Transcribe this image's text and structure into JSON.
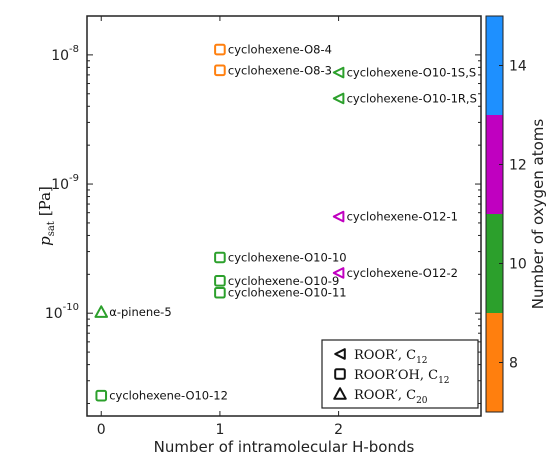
{
  "chart_data": {
    "type": "scatter",
    "xlabel": "Number of intramolecular H-bonds",
    "ylabel_main": "p",
    "ylabel_sub": "sat",
    "ylabel_unit": "[Pa]",
    "yscale": "log",
    "xlim": [
      -0.12,
      3.2
    ],
    "ylim": [
      1.6e-11,
      2e-08
    ],
    "xticks": [
      "0",
      "1",
      "2"
    ],
    "yticks": [
      {
        "base": "10",
        "exp": "-8",
        "value": 1e-08
      },
      {
        "base": "10",
        "exp": "-9",
        "value": 1e-09
      },
      {
        "base": "10",
        "exp": "-10",
        "value": 1e-10
      }
    ],
    "points": [
      {
        "label": "cyclohexene-O8-4",
        "x": 1,
        "y": 1.1e-08,
        "marker": "square",
        "oxygen": 8
      },
      {
        "label": "cyclohexene-O8-3",
        "x": 1,
        "y": 7.6e-09,
        "marker": "square",
        "oxygen": 8
      },
      {
        "label": "cyclohexene-O10-1S,S",
        "x": 2,
        "y": 7.3e-09,
        "marker": "triangle-left",
        "oxygen": 10
      },
      {
        "label": "cyclohexene-O10-1R,S",
        "x": 2,
        "y": 4.6e-09,
        "marker": "triangle-left",
        "oxygen": 10
      },
      {
        "label": "cyclohexene-O12-1",
        "x": 2,
        "y": 5.6e-10,
        "marker": "triangle-left",
        "oxygen": 12
      },
      {
        "label": "cyclohexene-O10-10",
        "x": 1,
        "y": 2.7e-10,
        "marker": "square",
        "oxygen": 10
      },
      {
        "label": "cyclohexene-O12-2",
        "x": 2,
        "y": 2.05e-10,
        "marker": "triangle-left",
        "oxygen": 12
      },
      {
        "label": "cyclohexene-O10-9",
        "x": 1,
        "y": 1.78e-10,
        "marker": "square",
        "oxygen": 10
      },
      {
        "label": "cyclohexene-O10-11",
        "x": 1,
        "y": 1.44e-10,
        "marker": "square",
        "oxygen": 10
      },
      {
        "label": "α-pinene-5",
        "x": 0,
        "y": 1.02e-10,
        "marker": "triangle-up",
        "oxygen": 10
      },
      {
        "label": "cyclohexene-O10-12",
        "x": 0,
        "y": 2.3e-11,
        "marker": "square",
        "oxygen": 10
      }
    ],
    "legend": [
      {
        "marker": "triangle-left",
        "text": "ROOR′, C",
        "sub": "12"
      },
      {
        "marker": "square",
        "text": "ROOR′OH, C",
        "sub": "12"
      },
      {
        "marker": "triangle-up",
        "text": "ROOR′, C",
        "sub": "20"
      }
    ],
    "legend_position": "bottom-right",
    "colorbar": {
      "label": "Number of oxygen atoms",
      "ticks": [
        "8",
        "10",
        "12",
        "14"
      ],
      "segments": [
        {
          "oxygen": 8,
          "color": "#ff7f0e"
        },
        {
          "oxygen": 10,
          "color": "#2ca02c"
        },
        {
          "oxygen": 12,
          "color": "#c000c0"
        },
        {
          "oxygen": 14,
          "color": "#1e90ff"
        }
      ]
    }
  }
}
